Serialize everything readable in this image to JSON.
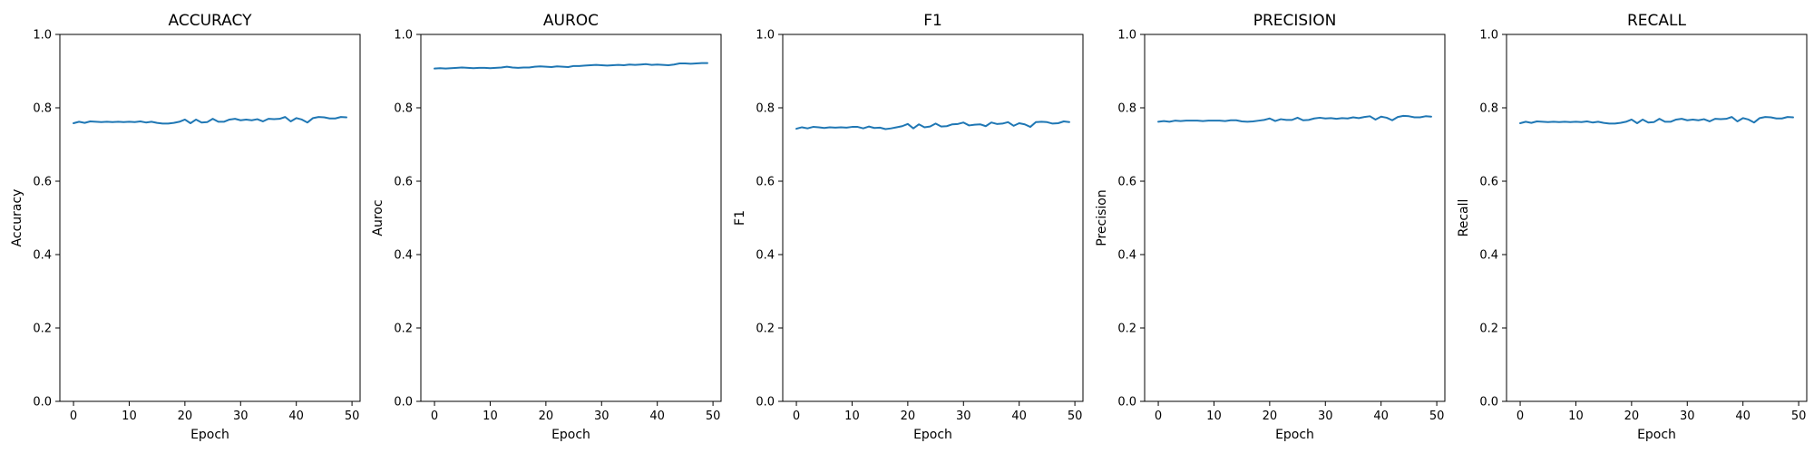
{
  "figure": {
    "colors": {
      "series": "#1f77b4",
      "axes": "#000000",
      "background": "#ffffff"
    }
  },
  "chart_data": [
    {
      "type": "line",
      "title": "ACCURACY",
      "xlabel": "Epoch",
      "ylabel": "Accuracy",
      "xlim": [
        -2.45,
        51.45
      ],
      "ylim": [
        0,
        1
      ],
      "xticks": [
        0,
        10,
        20,
        30,
        40,
        50
      ],
      "xtick_labels": [
        "0",
        "10",
        "20",
        "30",
        "40",
        "50"
      ],
      "yticks": [
        0,
        0.2,
        0.4,
        0.6,
        0.8,
        1.0
      ],
      "ytick_labels": [
        "0.0",
        "0.2",
        "0.4",
        "0.6",
        "0.8",
        "1.0"
      ],
      "grid": false,
      "series": [
        {
          "color": "#1f77b4",
          "x": [
            0,
            1,
            2,
            3,
            4,
            5,
            6,
            7,
            8,
            9,
            10,
            11,
            12,
            13,
            14,
            15,
            16,
            17,
            18,
            19,
            20,
            21,
            22,
            23,
            24,
            25,
            26,
            27,
            28,
            29,
            30,
            31,
            32,
            33,
            34,
            35,
            36,
            37,
            38,
            39,
            40,
            41,
            42,
            43,
            44,
            45,
            46,
            47,
            48,
            49
          ],
          "y": [
            0.758,
            0.762,
            0.759,
            0.763,
            0.762,
            0.761,
            0.762,
            0.761,
            0.762,
            0.761,
            0.762,
            0.761,
            0.763,
            0.76,
            0.762,
            0.759,
            0.757,
            0.757,
            0.759,
            0.762,
            0.768,
            0.758,
            0.768,
            0.76,
            0.761,
            0.77,
            0.762,
            0.762,
            0.768,
            0.77,
            0.766,
            0.768,
            0.766,
            0.769,
            0.763,
            0.77,
            0.769,
            0.77,
            0.775,
            0.763,
            0.772,
            0.768,
            0.76,
            0.772,
            0.775,
            0.774,
            0.771,
            0.771,
            0.775,
            0.774
          ]
        }
      ]
    },
    {
      "type": "line",
      "title": "AUROC",
      "xlabel": "Epoch",
      "ylabel": "Auroc",
      "xlim": [
        -2.45,
        51.45
      ],
      "ylim": [
        0,
        1
      ],
      "xticks": [
        0,
        10,
        20,
        30,
        40,
        50
      ],
      "xtick_labels": [
        "0",
        "10",
        "20",
        "30",
        "40",
        "50"
      ],
      "yticks": [
        0,
        0.2,
        0.4,
        0.6,
        0.8,
        1.0
      ],
      "ytick_labels": [
        "0.0",
        "0.2",
        "0.4",
        "0.6",
        "0.8",
        "1.0"
      ],
      "grid": false,
      "series": [
        {
          "color": "#1f77b4",
          "x": [
            0,
            1,
            2,
            3,
            4,
            5,
            6,
            7,
            8,
            9,
            10,
            11,
            12,
            13,
            14,
            15,
            16,
            17,
            18,
            19,
            20,
            21,
            22,
            23,
            24,
            25,
            26,
            27,
            28,
            29,
            30,
            31,
            32,
            33,
            34,
            35,
            36,
            37,
            38,
            39,
            40,
            41,
            42,
            43,
            44,
            45,
            46,
            47,
            48,
            49
          ],
          "y": [
            0.907,
            0.908,
            0.907,
            0.908,
            0.909,
            0.91,
            0.909,
            0.908,
            0.909,
            0.909,
            0.908,
            0.909,
            0.91,
            0.912,
            0.91,
            0.909,
            0.91,
            0.91,
            0.912,
            0.913,
            0.912,
            0.911,
            0.913,
            0.912,
            0.911,
            0.914,
            0.914,
            0.915,
            0.916,
            0.917,
            0.916,
            0.915,
            0.916,
            0.917,
            0.916,
            0.918,
            0.917,
            0.918,
            0.919,
            0.917,
            0.918,
            0.917,
            0.916,
            0.918,
            0.921,
            0.921,
            0.92,
            0.921,
            0.922,
            0.922
          ]
        }
      ]
    },
    {
      "type": "line",
      "title": "F1",
      "xlabel": "Epoch",
      "ylabel": "F1",
      "xlim": [
        -2.45,
        51.45
      ],
      "ylim": [
        0,
        1
      ],
      "xticks": [
        0,
        10,
        20,
        30,
        40,
        50
      ],
      "xtick_labels": [
        "0",
        "10",
        "20",
        "30",
        "40",
        "50"
      ],
      "yticks": [
        0,
        0.2,
        0.4,
        0.6,
        0.8,
        1.0
      ],
      "ytick_labels": [
        "0.0",
        "0.2",
        "0.4",
        "0.6",
        "0.8",
        "1.0"
      ],
      "grid": false,
      "series": [
        {
          "color": "#1f77b4",
          "x": [
            0,
            1,
            2,
            3,
            4,
            5,
            6,
            7,
            8,
            9,
            10,
            11,
            12,
            13,
            14,
            15,
            16,
            17,
            18,
            19,
            20,
            21,
            22,
            23,
            24,
            25,
            26,
            27,
            28,
            29,
            30,
            31,
            32,
            33,
            34,
            35,
            36,
            37,
            38,
            39,
            40,
            41,
            42,
            43,
            44,
            45,
            46,
            47,
            48,
            49
          ],
          "y": [
            0.743,
            0.747,
            0.744,
            0.748,
            0.747,
            0.745,
            0.747,
            0.746,
            0.747,
            0.746,
            0.748,
            0.748,
            0.744,
            0.749,
            0.745,
            0.746,
            0.742,
            0.744,
            0.747,
            0.75,
            0.756,
            0.744,
            0.755,
            0.747,
            0.749,
            0.757,
            0.749,
            0.75,
            0.755,
            0.756,
            0.76,
            0.752,
            0.754,
            0.755,
            0.75,
            0.76,
            0.756,
            0.757,
            0.761,
            0.751,
            0.758,
            0.755,
            0.748,
            0.761,
            0.762,
            0.761,
            0.757,
            0.758,
            0.763,
            0.761
          ]
        }
      ]
    },
    {
      "type": "line",
      "title": "PRECISION",
      "xlabel": "Epoch",
      "ylabel": "Precision",
      "xlim": [
        -2.45,
        51.45
      ],
      "ylim": [
        0,
        1
      ],
      "xticks": [
        0,
        10,
        20,
        30,
        40,
        50
      ],
      "xtick_labels": [
        "0",
        "10",
        "20",
        "30",
        "40",
        "50"
      ],
      "yticks": [
        0,
        0.2,
        0.4,
        0.6,
        0.8,
        1.0
      ],
      "ytick_labels": [
        "0.0",
        "0.2",
        "0.4",
        "0.6",
        "0.8",
        "1.0"
      ],
      "grid": false,
      "series": [
        {
          "color": "#1f77b4",
          "x": [
            0,
            1,
            2,
            3,
            4,
            5,
            6,
            7,
            8,
            9,
            10,
            11,
            12,
            13,
            14,
            15,
            16,
            17,
            18,
            19,
            20,
            21,
            22,
            23,
            24,
            25,
            26,
            27,
            28,
            29,
            30,
            31,
            32,
            33,
            34,
            35,
            36,
            37,
            38,
            39,
            40,
            41,
            42,
            43,
            44,
            45,
            46,
            47,
            48,
            49
          ],
          "y": [
            0.762,
            0.764,
            0.762,
            0.765,
            0.764,
            0.765,
            0.765,
            0.765,
            0.764,
            0.765,
            0.765,
            0.765,
            0.764,
            0.766,
            0.766,
            0.763,
            0.762,
            0.763,
            0.765,
            0.767,
            0.771,
            0.764,
            0.769,
            0.767,
            0.767,
            0.773,
            0.766,
            0.767,
            0.771,
            0.773,
            0.771,
            0.772,
            0.77,
            0.772,
            0.771,
            0.774,
            0.772,
            0.775,
            0.777,
            0.768,
            0.776,
            0.773,
            0.766,
            0.775,
            0.778,
            0.777,
            0.774,
            0.774,
            0.777,
            0.776
          ]
        }
      ]
    },
    {
      "type": "line",
      "title": "RECALL",
      "xlabel": "Epoch",
      "ylabel": "Recall",
      "xlim": [
        -2.45,
        51.45
      ],
      "ylim": [
        0,
        1
      ],
      "xticks": [
        0,
        10,
        20,
        30,
        40,
        50
      ],
      "xtick_labels": [
        "0",
        "10",
        "20",
        "30",
        "40",
        "50"
      ],
      "yticks": [
        0,
        0.2,
        0.4,
        0.6,
        0.8,
        1.0
      ],
      "ytick_labels": [
        "0.0",
        "0.2",
        "0.4",
        "0.6",
        "0.8",
        "1.0"
      ],
      "grid": false,
      "series": [
        {
          "color": "#1f77b4",
          "x": [
            0,
            1,
            2,
            3,
            4,
            5,
            6,
            7,
            8,
            9,
            10,
            11,
            12,
            13,
            14,
            15,
            16,
            17,
            18,
            19,
            20,
            21,
            22,
            23,
            24,
            25,
            26,
            27,
            28,
            29,
            30,
            31,
            32,
            33,
            34,
            35,
            36,
            37,
            38,
            39,
            40,
            41,
            42,
            43,
            44,
            45,
            46,
            47,
            48,
            49
          ],
          "y": [
            0.758,
            0.762,
            0.759,
            0.763,
            0.762,
            0.761,
            0.762,
            0.761,
            0.762,
            0.761,
            0.762,
            0.761,
            0.763,
            0.76,
            0.762,
            0.759,
            0.757,
            0.757,
            0.759,
            0.762,
            0.768,
            0.758,
            0.768,
            0.76,
            0.761,
            0.77,
            0.762,
            0.762,
            0.768,
            0.77,
            0.766,
            0.768,
            0.766,
            0.769,
            0.763,
            0.77,
            0.769,
            0.77,
            0.775,
            0.763,
            0.772,
            0.768,
            0.76,
            0.772,
            0.775,
            0.774,
            0.771,
            0.771,
            0.775,
            0.774
          ]
        }
      ]
    }
  ]
}
